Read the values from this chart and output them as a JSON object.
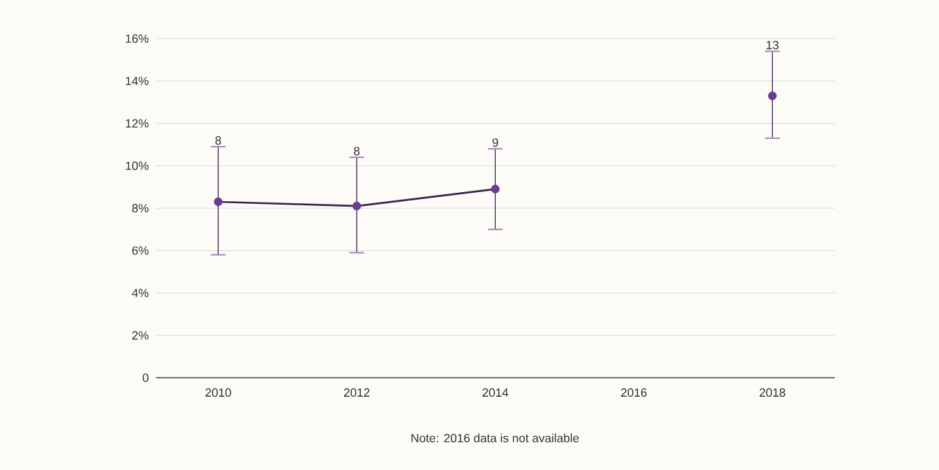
{
  "chart_data": {
    "type": "line",
    "x": [
      2010,
      2012,
      2014,
      2016,
      2018
    ],
    "series": [
      {
        "color": "#6a3d8f",
        "values": [
          8.3,
          8.1,
          8.9,
          null,
          13.3
        ],
        "errors": [
          [
            5.8,
            10.9
          ],
          [
            5.9,
            10.4
          ],
          [
            7.0,
            10.8
          ],
          null,
          [
            11.3,
            15.4
          ]
        ]
      }
    ],
    "xlim": [
      2009.1,
      2018.9
    ],
    "xticks": [
      2010,
      2012,
      2014,
      2016,
      2018
    ],
    "ylim": [
      0,
      16
    ],
    "yticks": [
      {
        "value": 0,
        "label": "0"
      },
      {
        "value": 2,
        "label": "2%"
      },
      {
        "value": 4,
        "label": "4%"
      },
      {
        "value": 6,
        "label": "6%"
      },
      {
        "value": 8,
        "label": "8%"
      },
      {
        "value": 10,
        "label": "10%"
      },
      {
        "value": 12,
        "label": "12%"
      },
      {
        "value": 14,
        "label": "14%"
      },
      {
        "value": 16,
        "label": "16%"
      }
    ],
    "grid": "y",
    "marker": "circle",
    "annotations": [
      {
        "text": "8",
        "x": 2010,
        "y": 10.9
      },
      {
        "text": "8",
        "x": 2012,
        "y": 10.4
      },
      {
        "text": "9",
        "x": 2014,
        "y": 10.8
      },
      {
        "text": "13",
        "x": 2018,
        "y": 15.4
      },
      "Note: 2016 data is not available"
    ]
  }
}
